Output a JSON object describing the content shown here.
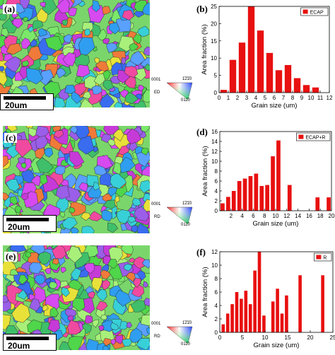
{
  "figure": {
    "panels": [
      {
        "label": "(a)",
        "scale_bar": "20um",
        "ipf_corner_0001": "0001",
        "ipf_corner_1210": "1̄2̄1̄0",
        "ipf_corner_0110": "011̄0",
        "direction": "ED"
      },
      {
        "label": "(c)",
        "scale_bar": "20um",
        "ipf_corner_0001": "0001",
        "ipf_corner_1210": "1̄2̄1̄0",
        "ipf_corner_0110": "011̄0",
        "direction": "RD"
      },
      {
        "label": "(e)",
        "scale_bar": "20um",
        "ipf_corner_0001": "0001",
        "ipf_corner_1210": "1̄2̄1̄0",
        "ipf_corner_0110": "011̄0",
        "direction": "RD"
      }
    ]
  },
  "chart_data": [
    {
      "type": "bar",
      "panel_label": "(b)",
      "legend": "ECAP",
      "ylabel": "Area fraction (%)",
      "xlabel": "Grain size (um)",
      "xlim": [
        0,
        12
      ],
      "ylim": [
        0,
        25
      ],
      "xticks": [
        0,
        1,
        2,
        3,
        4,
        5,
        6,
        7,
        8,
        9,
        10,
        11,
        12
      ],
      "yticks": [
        0,
        5,
        10,
        15,
        20,
        25
      ],
      "x": [
        0.5,
        1.5,
        2.5,
        3.5,
        4.5,
        5.5,
        6.5,
        7.5,
        8.5,
        9.5,
        10.5
      ],
      "values": [
        0.8,
        9.5,
        14.5,
        25,
        18,
        11.5,
        6.5,
        8,
        4.2,
        2.2,
        1.5
      ]
    },
    {
      "type": "bar",
      "panel_label": "(d)",
      "legend": "ECAP+R",
      "ylabel": "Area fraction (%)",
      "xlabel": "Grain size (um)",
      "xlim": [
        0,
        20
      ],
      "ylim": [
        0,
        16
      ],
      "xticks": [
        2,
        4,
        6,
        8,
        10,
        12,
        14,
        16,
        18,
        20
      ],
      "xtick_labels": [
        "2",
        "4",
        "6",
        "8",
        "10",
        "12",
        "14",
        "16",
        "18",
        "20"
      ],
      "yticks": [
        0,
        2,
        4,
        6,
        8,
        10,
        12,
        14,
        16
      ],
      "x": [
        0.5,
        1.5,
        2.5,
        3.5,
        4.5,
        5.5,
        6.5,
        7.5,
        8.5,
        9.5,
        10.5,
        11.5,
        12.5,
        13.5,
        14.5,
        15.5,
        16.5,
        17.5,
        18.5,
        19.5
      ],
      "values": [
        1.5,
        2.8,
        4,
        6,
        6.5,
        7,
        7.5,
        5,
        5.2,
        11,
        14.2,
        0,
        5.2,
        0,
        0,
        0,
        0,
        2.7,
        0,
        2.7
      ]
    },
    {
      "type": "bar",
      "panel_label": "(f)",
      "legend": "R",
      "ylabel": "Area fraction (%)",
      "xlabel": "Grain size (um)",
      "xlim": [
        0,
        25
      ],
      "ylim": [
        0,
        12
      ],
      "xticks": [
        0,
        5,
        10,
        15,
        20,
        25
      ],
      "yticks": [
        0,
        2,
        4,
        6,
        8,
        10,
        12
      ],
      "x": [
        0.75,
        1.75,
        2.75,
        3.75,
        4.75,
        5.75,
        6.75,
        7.75,
        8.75,
        9.75,
        10.75,
        11.75,
        12.75,
        13.75,
        14.75,
        17.75,
        22.75
      ],
      "values": [
        1.2,
        2.8,
        4.2,
        6,
        5,
        6.2,
        4.2,
        9.2,
        12,
        2.5,
        0,
        4.6,
        6.5,
        2.8,
        5.5,
        8.5,
        8.5
      ]
    }
  ]
}
